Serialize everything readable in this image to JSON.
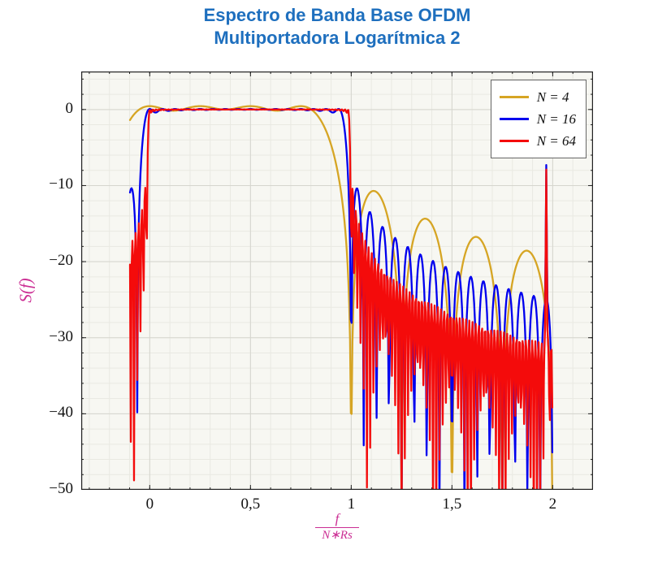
{
  "title": {
    "line1": "Espectro de Banda Base OFDM",
    "line2": "Multiportadora Logarítmica 2",
    "color": "#1e6fbe"
  },
  "chart_data": {
    "type": "line",
    "title": "Espectro de Banda Base OFDM Multiportadora Logarítmica 2",
    "ylabel": "S(f)",
    "xlabel": {
      "numerator": "f",
      "denominator": "N∗Rs"
    },
    "label_color": "#cb2d93",
    "grid": true,
    "legend_position": "top-right",
    "xlim": [
      -0.34,
      2.2
    ],
    "ylim": [
      -50,
      5
    ],
    "x_data_range": [
      -0.098,
      1.998
    ],
    "x_ticks": [
      {
        "value": 0,
        "label": "0"
      },
      {
        "value": 0.5,
        "label": "0,5"
      },
      {
        "value": 1,
        "label": "1"
      },
      {
        "value": 1.5,
        "label": "1,5"
      },
      {
        "value": 2,
        "label": "2"
      }
    ],
    "y_ticks": [
      {
        "value": 0,
        "label": "0"
      },
      {
        "value": -10,
        "label": "−10"
      },
      {
        "value": -20,
        "label": "−20"
      },
      {
        "value": -30,
        "label": "−30"
      },
      {
        "value": -40,
        "label": "−40"
      },
      {
        "value": -50,
        "label": "−50"
      }
    ],
    "x_minor_step": 0.1,
    "y_minor_step": 2,
    "sample_step": 0.004,
    "model": "S_dB(u) = 10*log10( sum_{k=0}^{N-1} sinc^2(N*u - k) / inband_mean ), u = f/(N*Rs); flat band 0..1 at 0 dB, sinc sidelobes beyond; curves clipped at -50 dB",
    "series": [
      {
        "label": "N = 4",
        "N": 4,
        "color": "#d6a524",
        "edge_spike": null,
        "key_features": {
          "value_at_u_-0.1_db": -2,
          "first_sidelobe_db": -11.3,
          "sidelobe_near_u2_db": -19
        }
      },
      {
        "label": "N = 16",
        "N": 16,
        "color": "#0000ee",
        "edge_spike": {
          "center": 1.968,
          "peak_db": -7.3,
          "half_width": 0.012
        },
        "key_features": {
          "value_at_u_-0.1_db": -11.3,
          "first_sidelobe_db": -11,
          "sidelobe_near_u2_db": -26
        }
      },
      {
        "label": "N = 64",
        "N": 64,
        "color": "#f40b0b",
        "edge_spike": {
          "center": 1.968,
          "peak_db": -7.9,
          "half_width": 0.012
        },
        "key_features": {
          "value_at_u_-0.1_db": -18.5,
          "first_sidelobe_db": -12,
          "deep_nulls_down_to_db": -50
        }
      }
    ]
  }
}
